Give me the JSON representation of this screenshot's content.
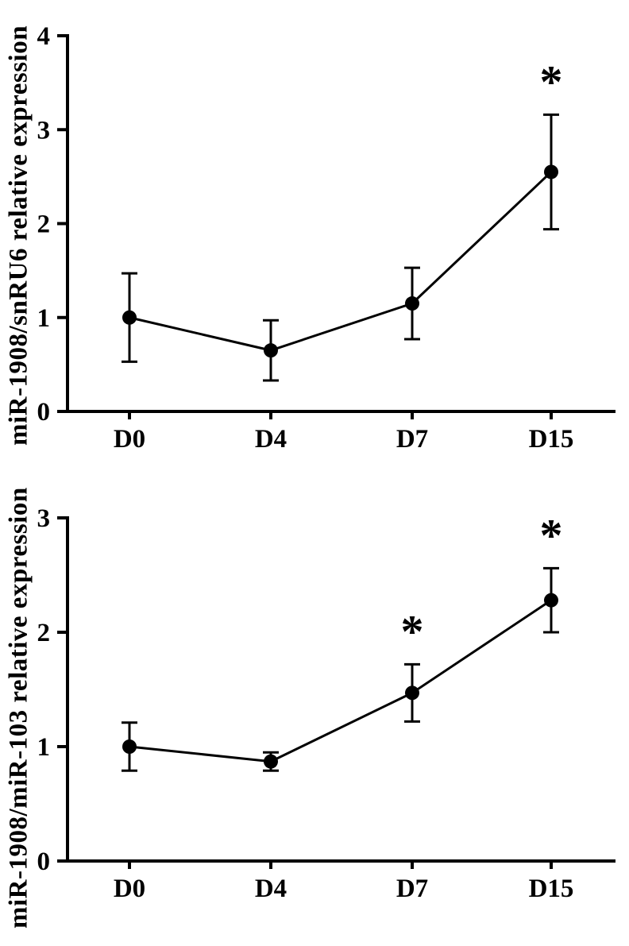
{
  "figure": {
    "background": "#ffffff",
    "ink_color": "#000000"
  },
  "chart_data": [
    {
      "type": "line",
      "title": "",
      "xlabel": "",
      "ylabel": "miR-1908/snRU6 relative expression",
      "categories": [
        "D0",
        "D4",
        "D7",
        "D15"
      ],
      "series": [
        {
          "name": "miR-1908/snRU6",
          "values": [
            1.0,
            0.65,
            1.15,
            2.55
          ],
          "errors": [
            0.47,
            0.32,
            0.38,
            0.61
          ]
        }
      ],
      "ylim": [
        0,
        4
      ],
      "yticks": [
        0,
        1,
        2,
        3,
        4
      ],
      "grid": false,
      "legend": "none",
      "marker": "filled-circle",
      "annotations": [
        {
          "category": "D15",
          "label": "*"
        }
      ]
    },
    {
      "type": "line",
      "title": "",
      "xlabel": "",
      "ylabel": "miR-1908/miR-103 relative expression",
      "categories": [
        "D0",
        "D4",
        "D7",
        "D15"
      ],
      "series": [
        {
          "name": "miR-1908/miR-103",
          "values": [
            1.0,
            0.87,
            1.47,
            2.28
          ],
          "errors": [
            0.21,
            0.08,
            0.25,
            0.28
          ]
        }
      ],
      "ylim": [
        0,
        3
      ],
      "yticks": [
        0,
        1,
        2,
        3
      ],
      "grid": false,
      "legend": "none",
      "marker": "filled-circle",
      "annotations": [
        {
          "category": "D7",
          "label": "*"
        },
        {
          "category": "D15",
          "label": "*"
        }
      ]
    }
  ]
}
